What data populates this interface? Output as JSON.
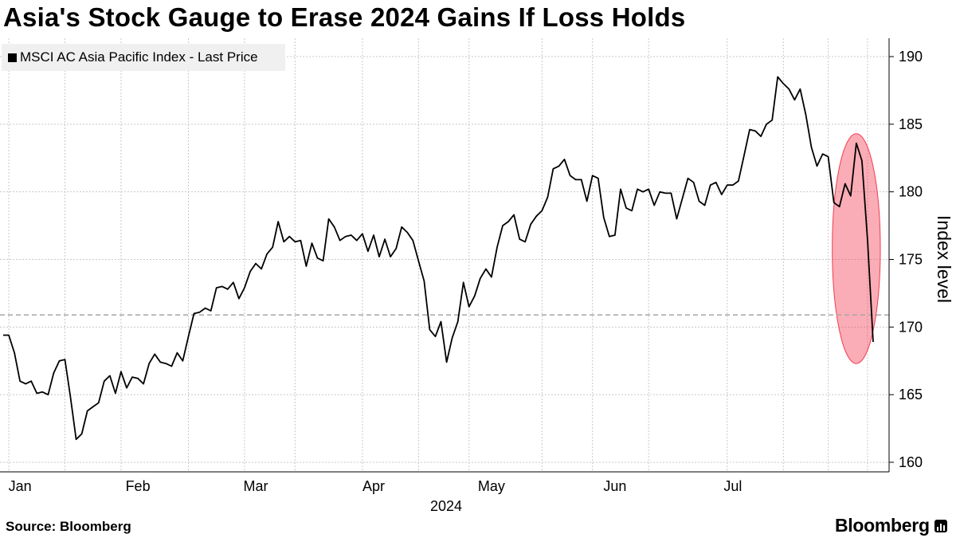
{
  "chart_data": {
    "type": "line",
    "title": "Asia's Stock Gauge to Erase 2024 Gains If Loss Holds",
    "series": [
      {
        "name": "MSCI AC Asia Pacific Index - Last Price",
        "color": "#000000",
        "values": [
          169.4,
          169.4,
          168.1,
          166.0,
          165.8,
          166.0,
          165.1,
          165.2,
          165.0,
          166.6,
          167.5,
          167.6,
          164.8,
          161.7,
          162.1,
          163.8,
          164.1,
          164.4,
          166.0,
          166.4,
          165.1,
          166.7,
          165.5,
          166.3,
          166.2,
          165.8,
          167.3,
          168.0,
          167.4,
          167.3,
          167.1,
          168.1,
          167.5,
          169.3,
          171.0,
          171.1,
          171.4,
          171.2,
          172.9,
          173.0,
          172.8,
          173.3,
          172.1,
          172.9,
          174.1,
          174.7,
          174.3,
          175.4,
          175.9,
          177.8,
          176.3,
          176.7,
          176.3,
          176.4,
          174.5,
          176.2,
          175.1,
          174.9,
          178.0,
          177.4,
          176.4,
          176.7,
          176.8,
          176.4,
          176.9,
          175.6,
          176.8,
          175.2,
          176.5,
          175.2,
          175.8,
          177.4,
          177.0,
          176.4,
          174.9,
          173.4,
          169.8,
          169.3,
          170.4,
          167.4,
          169.2,
          170.4,
          173.3,
          171.5,
          172.3,
          173.6,
          174.3,
          173.7,
          175.9,
          177.5,
          177.8,
          178.3,
          176.5,
          176.3,
          177.6,
          178.2,
          178.6,
          179.6,
          181.7,
          181.9,
          182.4,
          181.2,
          180.9,
          180.9,
          179.3,
          181.2,
          181.0,
          178.1,
          176.7,
          176.8,
          180.2,
          178.8,
          178.6,
          180.2,
          180.0,
          180.2,
          179.0,
          180.0,
          179.9,
          179.9,
          178.0,
          179.5,
          181.0,
          180.7,
          179.3,
          179.0,
          180.5,
          180.7,
          179.8,
          180.5,
          180.5,
          180.8,
          182.7,
          184.6,
          184.5,
          184.1,
          185.0,
          185.3,
          188.5,
          188.0,
          187.6,
          186.8,
          187.6,
          185.7,
          183.3,
          181.9,
          182.8,
          182.6,
          179.2,
          178.9,
          180.6,
          179.7,
          183.6,
          182.3,
          176.4,
          168.9
        ]
      }
    ],
    "x_axis": {
      "ticks": [
        {
          "label": "Jan",
          "pos": 3
        },
        {
          "label": "Feb",
          "pos": 24
        },
        {
          "label": "Mar",
          "pos": 45
        },
        {
          "label": "Apr",
          "pos": 66
        },
        {
          "label": "May",
          "pos": 87
        },
        {
          "label": "Jun",
          "pos": 109
        },
        {
          "label": "Jul",
          "pos": 130
        }
      ],
      "gridlines": [
        1,
        11,
        21,
        33,
        43,
        52,
        64,
        74,
        83,
        96,
        105,
        115,
        129,
        139,
        147,
        154
      ],
      "year_label": "2024"
    },
    "ylabel": "Index level",
    "ylim": [
      160,
      190
    ],
    "yticks": [
      160,
      165,
      170,
      175,
      180,
      185,
      190
    ],
    "reference_line": {
      "value": 170.9,
      "label": ""
    },
    "highlight": {
      "from": 148,
      "to": 156,
      "ymin": 167.3,
      "ymax": 184.3,
      "color": "#f23c50"
    }
  },
  "source": "Source: Bloomberg",
  "brand": "Bloomberg"
}
